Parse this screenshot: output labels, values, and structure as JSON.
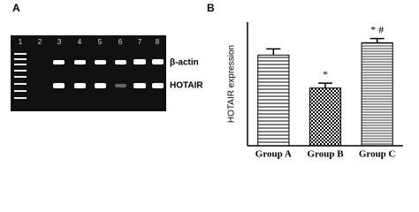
{
  "panel_a": {
    "label": "A",
    "lanes": [
      "1",
      "2",
      "3",
      "4",
      "5",
      "6",
      "7",
      "8"
    ],
    "bands": [
      "β-actin",
      "HOTAIR"
    ]
  },
  "chart_data": {
    "type": "bar",
    "panel_label": "B",
    "y_label": "HOTAIR expression",
    "categories": [
      "Group A",
      "Group B",
      "Group C"
    ],
    "values": [
      2.2,
      1.4,
      2.5
    ],
    "errors": [
      0.15,
      0.12,
      0.1
    ],
    "annotations": [
      {
        "text": "*",
        "category": "Group B"
      },
      {
        "text": "* #",
        "category": "Group C"
      }
    ],
    "ylim": [
      0,
      3
    ]
  }
}
